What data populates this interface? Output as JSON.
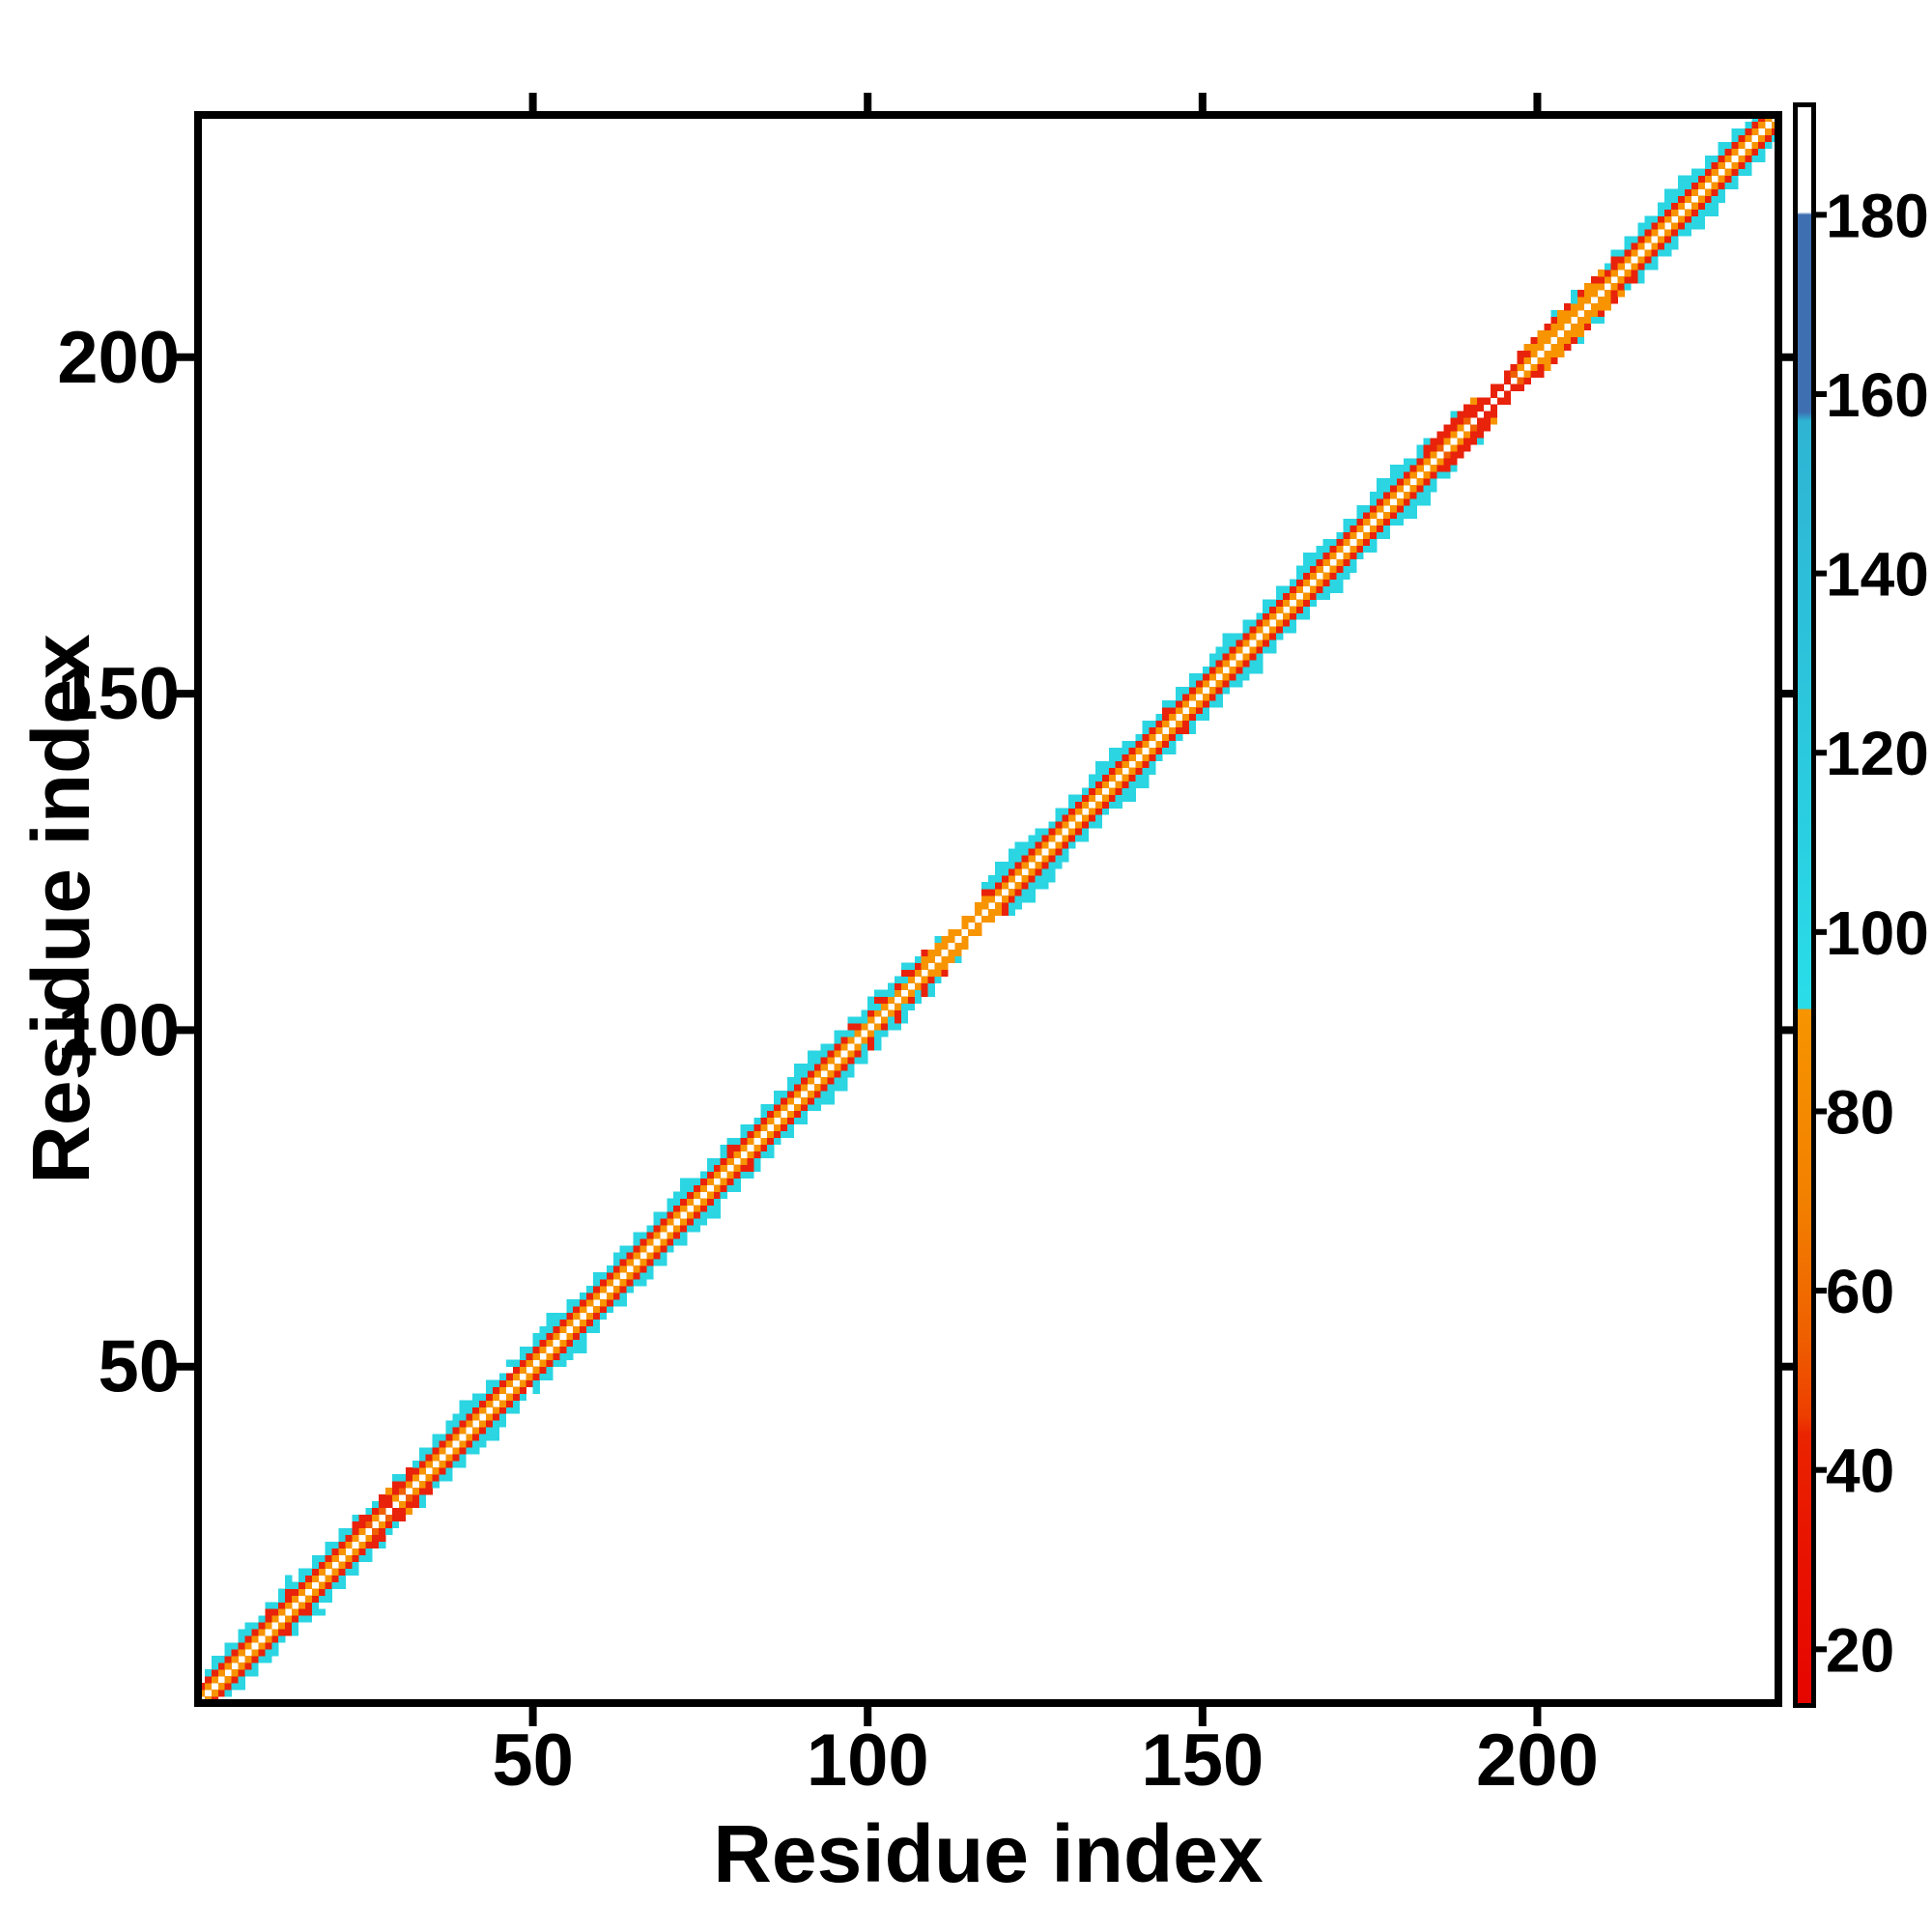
{
  "figure": {
    "background": "#ffffff",
    "frame_color": "#000000"
  },
  "axes": {
    "x": {
      "title": "Residue index",
      "range": [
        0,
        236
      ],
      "ticks": [
        50,
        100,
        150,
        200
      ]
    },
    "y": {
      "title": "Residue index",
      "range": [
        0,
        236
      ],
      "ticks": [
        50,
        100,
        150,
        200
      ]
    }
  },
  "colorbar": {
    "ticks": [
      20,
      40,
      60,
      80,
      100,
      120,
      140,
      160,
      180
    ],
    "value_min": 14,
    "value_max": 192,
    "gradient_stops": [
      [
        192,
        "#FFFFFF"
      ],
      [
        180.3,
        "#FFFFFF"
      ],
      [
        180,
        "#3E6FB0"
      ],
      [
        158,
        "#3E6FB0"
      ],
      [
        157,
        "#2FB4D4"
      ],
      [
        120,
        "#2BC9DE"
      ],
      [
        93,
        "#29DCE8"
      ],
      [
        91.5,
        "#29DCE8"
      ],
      [
        91.3,
        "#F79400"
      ],
      [
        70,
        "#F28000"
      ],
      [
        55,
        "#EF6000"
      ],
      [
        46,
        "#ED3E00"
      ],
      [
        44,
        "#EA2400"
      ],
      [
        30,
        "#E81200"
      ],
      [
        14,
        "#E60600"
      ]
    ]
  },
  "chart_data": {
    "type": "heatmap",
    "xlabel": "Residue index",
    "ylabel": "Residue index",
    "n_residues": 236,
    "xlim": [
      0,
      236
    ],
    "ylim": [
      0,
      236
    ],
    "grid": false,
    "legend_position": "colorbar-right",
    "diagonal_color": "#FFFFFF",
    "palette": {
      "O": "#F79400",
      "D": "#EF6000",
      "R": "#E8220B",
      "C": "#2BD5E2"
    },
    "band_code_legend": "Each entry i gives colors of symmetric cells (i,i±k) for offsets k=1..5; O=orange, D=deep-orange, R=red, C=cyan, .=empty; diagonal cell itself is white",
    "band_codes": [
      "OR",
      "ORC",
      "ORCC",
      "ORC",
      "ORCC",
      "ORC",
      "ORCC",
      "ORCC",
      "ORC",
      "ORC",
      "ORRC",
      "ORC",
      "ORCC",
      "ORRCC",
      "ORC",
      "ORCC",
      "ORC",
      "ORCC",
      "ORC",
      "ORCC",
      "ORC",
      "ORCC",
      "ORC",
      "ORRC",
      "ORR.",
      "DRC.",
      "ORC",
      "DRR.",
      "RRO.",
      "ORRC",
      "DRC.",
      "ORR.",
      "ORC",
      "ORCC",
      "ORC",
      "ORCC",
      "ORC",
      "ORCC",
      "ORCC",
      "ORCCC",
      "ORCC",
      "ORCC",
      "ORC",
      "ORCC",
      "ORC",
      "ORC",
      "OR.C",
      "ORC",
      "ORCC",
      "ORC",
      "ORCC",
      "ORCC",
      "ORCCC",
      "ORCC",
      "ORC",
      "ORCC",
      "ORC",
      "ORC",
      "ORC",
      "ORCC",
      "ORC",
      "ORC",
      "ORCC",
      "ORCC",
      "ORC",
      "ORCC",
      "ORC",
      "ORC",
      "ORCC",
      "ORC",
      "ORCC",
      "ORCC",
      "ORCCC",
      "ORCC",
      "ORC",
      "ORC",
      "ORCC",
      "ORC",
      "ORCC",
      "ORRC",
      "ORC",
      "ORCC",
      "ORC",
      "ORC",
      "ORCC",
      "ORC",
      "ORCC",
      "ORC",
      "ORCC",
      "ORCCC",
      "ORCC",
      "ORCCC",
      "ORCC",
      "ORCC",
      "ORC",
      "ORCC",
      "ORC",
      "OCRC",
      "ORC",
      "OCC.",
      "ORCC",
      "OCRC",
      "ORC",
      "OCC.",
      "ORC",
      "OCRC",
      "ORC",
      "ORC",
      "OOR.",
      "OO..",
      "OOC.",
      "OO..",
      "OO..",
      "O...",
      "OO..",
      "O...",
      "OO..",
      "OORC",
      "ORCC",
      "ORCCC",
      "ORCC",
      "ORCCC",
      "ORCCC",
      "ORCC",
      "ORCC",
      "ORCC",
      "ORC",
      "ORC",
      "ORCC",
      "ORC",
      "ORCC",
      "ORC",
      "ORC",
      "ORCC",
      "ORCCC",
      "ORCC",
      "ORCCC",
      "ORCC",
      "ORCC",
      "ORC",
      "ORC",
      "ORCC",
      "ORC",
      "ORC",
      "ORRC",
      "ORC",
      "ORCC",
      "ORC",
      "ORCC",
      "ORC",
      "ORC",
      "ORCC",
      "ORCC",
      "ORCCC",
      "ORCC",
      "ORC",
      "ORCC",
      "ORC",
      "ORC",
      "ORCC",
      "ORC",
      "ORCC",
      "ORC",
      "ORC",
      "ORCC",
      "ORCCC",
      "ORCC",
      "ORCC",
      "ORCC",
      "ORC",
      "ORC",
      "ORCC",
      "ORC",
      "ORCC",
      "ORC",
      "ORCC",
      "ORCCC",
      "ORCC",
      "ORCCC",
      "ORCC",
      "ORCC",
      "ORC",
      "ORCC",
      "ORRC",
      "ORR.",
      "DRR.",
      "ORR.",
      "ORRC",
      "ORR.",
      "DRR.",
      "RRO.",
      "RR..",
      "R...",
      "RR..",
      "R...",
      "RR..",
      "DR..",
      "ORR.",
      "ORO.",
      "OOR.",
      "OOO.",
      "OOR.",
      "OORC",
      "OOO.",
      "OOR.",
      "OOCC",
      "OOR.",
      "OOO.",
      "OOR.",
      "ORO.",
      "ORC",
      "ORRC",
      "ORC",
      "ORCC",
      "ORC",
      "ORCC",
      "ORCC",
      "ORC",
      "ORCC",
      "ORCCC",
      "ORCC",
      "ORCCC",
      "ORCC",
      "ORCC",
      "ORC",
      "ORCC",
      "ORC",
      "ORCC",
      "ORC",
      "ORCC",
      "ORC",
      "ORC",
      "ORCC",
      "ORC",
      "ORC",
      "OR"
    ]
  }
}
